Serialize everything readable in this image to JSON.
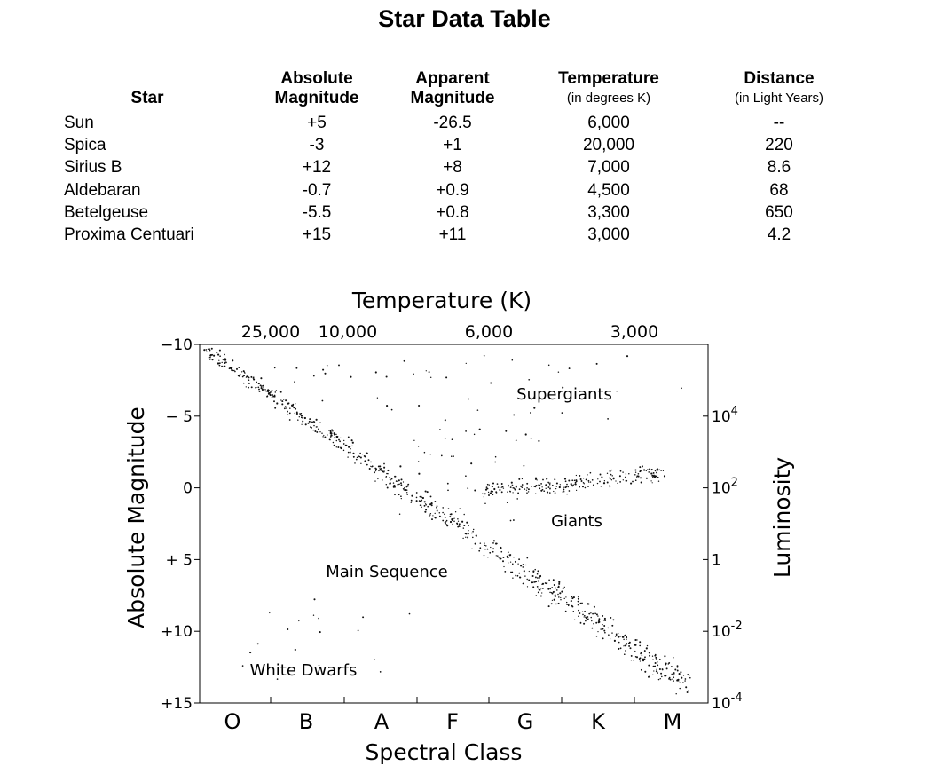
{
  "title": "Star Data Table",
  "table": {
    "headers": [
      {
        "line1": "",
        "line2": "Star",
        "sub": ""
      },
      {
        "line1": "Absolute",
        "line2": "Magnitude",
        "sub": ""
      },
      {
        "line1": "Apparent",
        "line2": "Magnitude",
        "sub": ""
      },
      {
        "line1": "Temperature",
        "line2": "",
        "sub": "(in degrees K)"
      },
      {
        "line1": "Distance",
        "line2": "",
        "sub": "(in Light Years)"
      }
    ],
    "rows": [
      [
        "Sun",
        "+5",
        "-26.5",
        "6,000",
        "--"
      ],
      [
        "Spica",
        "-3",
        "+1",
        "20,000",
        "220"
      ],
      [
        "Sirius B",
        "+12",
        "+8",
        "7,000",
        "8.6"
      ],
      [
        "Aldebaran",
        "-0.7",
        "+0.9",
        "4,500",
        "68"
      ],
      [
        "Betelgeuse",
        "-5.5",
        "+0.8",
        "3,300",
        "650"
      ],
      [
        "Proxima Centuari",
        "+15",
        "+11",
        "3,000",
        "4.2"
      ]
    ]
  },
  "chart_data": {
    "type": "scatter",
    "top_axis_label": "Temperature (K)",
    "top_ticks": [
      "25,000",
      "10,000",
      "6,000",
      "3,000"
    ],
    "xlabel": "Spectral Class",
    "x_categories": [
      "O",
      "B",
      "A",
      "F",
      "G",
      "K",
      "M"
    ],
    "ylabel": "Absolute Magnitude",
    "ylim": [
      -10,
      15
    ],
    "y_ticks": [
      "−10",
      "− 5",
      "0",
      "+ 5",
      "+10",
      "+15"
    ],
    "right_label": "Luminosity",
    "right_ticks": [
      {
        "base": "10",
        "exp": "4",
        "magnitude": -5
      },
      {
        "base": "10",
        "exp": "2",
        "magnitude": 0
      },
      {
        "base": "1",
        "exp": "",
        "magnitude": 5
      },
      {
        "base": "10",
        "exp": "-2",
        "magnitude": 10
      },
      {
        "base": "10",
        "exp": "-4",
        "magnitude": 15
      }
    ],
    "annotations": [
      "Supergiants",
      "Giants",
      "Main Sequence",
      "White Dwarfs"
    ]
  }
}
